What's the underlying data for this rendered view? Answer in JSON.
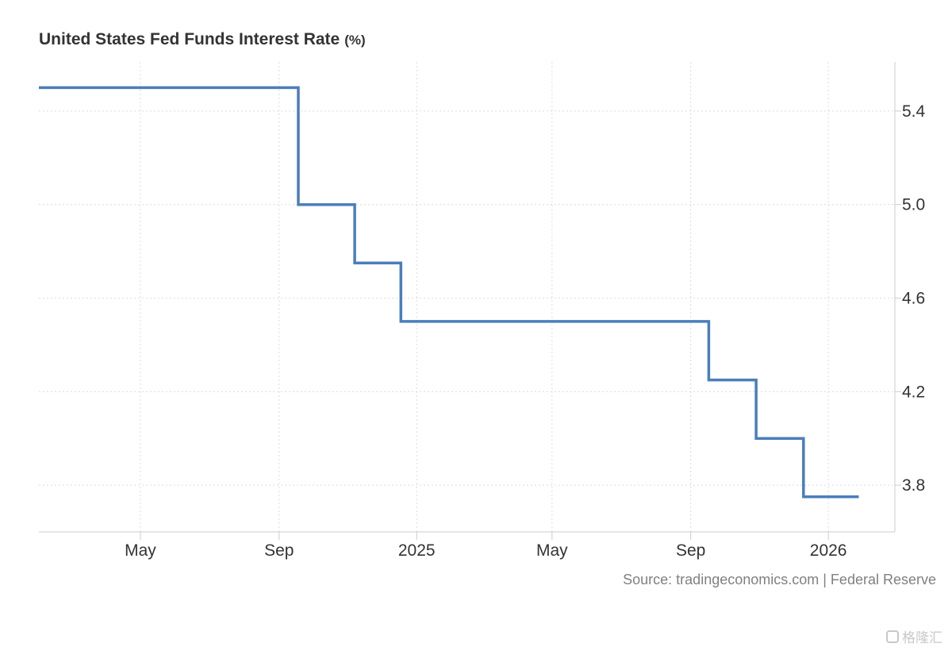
{
  "chart_data": {
    "type": "line",
    "style": "step",
    "title": "United States Fed Funds Interest Rate",
    "unit": "(%)",
    "x_tick_labels": [
      "May",
      "Sep",
      "2025",
      "May",
      "Sep",
      "2026"
    ],
    "x_ticks": [
      "2024-05-01",
      "2024-09-01",
      "2025-01-01",
      "2025-05-01",
      "2025-09-01",
      "2026-01-01"
    ],
    "xlim": [
      "2024-02-01",
      "2026-03-01"
    ],
    "y_tick_labels": [
      "5.4",
      "5.0",
      "4.6",
      "4.2",
      "3.8"
    ],
    "y_ticks": [
      5.4,
      5.0,
      4.6,
      4.2,
      3.8
    ],
    "ylim": [
      3.6,
      5.61
    ],
    "y_axis_position": "right",
    "grid": true,
    "series": [
      {
        "color": "#4a7ebb",
        "points": [
          {
            "x": "2024-02-01",
            "y": 5.5
          },
          {
            "x": "2024-09-18",
            "y": 5.0
          },
          {
            "x": "2024-11-07",
            "y": 4.75
          },
          {
            "x": "2024-12-18",
            "y": 4.5
          },
          {
            "x": "2025-09-17",
            "y": 4.25
          },
          {
            "x": "2025-10-29",
            "y": 4.0
          },
          {
            "x": "2025-12-10",
            "y": 3.75
          },
          {
            "x": "2026-01-28",
            "y": 3.75
          }
        ]
      }
    ]
  },
  "source": "Source: tradingeconomics.com | Federal Reserve",
  "watermark": "格隆汇"
}
